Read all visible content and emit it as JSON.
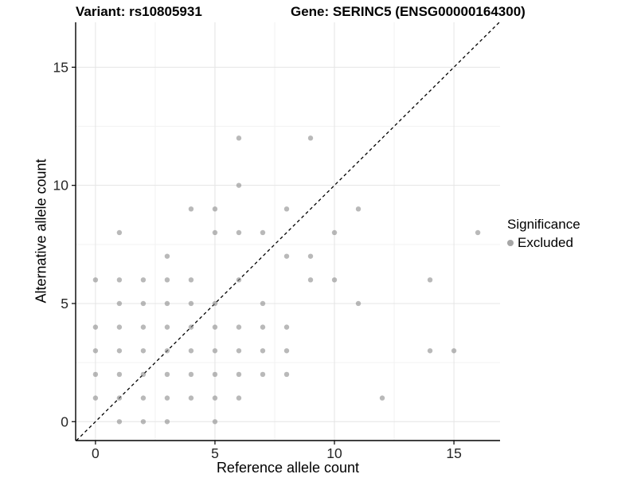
{
  "chart_data": {
    "type": "scatter",
    "title_left": "Variant: rs10805931",
    "title_right": "Gene: SERINC5 (ENSG00000164300)",
    "xlabel": "Reference allele count",
    "ylabel": "Alternative allele count",
    "xlim": [
      -0.83,
      16.93
    ],
    "ylim": [
      -0.8,
      16.9
    ],
    "x_ticks": [
      0,
      5,
      10,
      15
    ],
    "y_ticks": [
      0,
      5,
      10,
      15
    ],
    "x_minor_ticks": [
      2.5,
      7.5,
      12.5
    ],
    "y_minor_ticks": [
      2.5,
      7.5,
      12.5
    ],
    "grid": true,
    "legend": {
      "position": "right",
      "title": "Significance",
      "items": [
        {
          "label": "Excluded",
          "color": "#a6a6a6"
        }
      ]
    },
    "reference_line": {
      "type": "identity-diagonal",
      "style": "dashed",
      "color": "#000000",
      "from": [
        -0.8,
        -0.8
      ],
      "to": [
        16.9,
        16.9
      ]
    },
    "point_style": {
      "color": "#8a8a8a",
      "opacity": 0.6,
      "radius": 3.2
    },
    "colors": {
      "background": "#ffffff",
      "grid_major": "#e4e4e4",
      "grid_minor": "#f2f2f2",
      "axis_line": "#000000",
      "tick_label": "#262626"
    },
    "points": [
      [
        1,
        0
      ],
      [
        2,
        0
      ],
      [
        3,
        0
      ],
      [
        5,
        0
      ],
      [
        0,
        1
      ],
      [
        1,
        1
      ],
      [
        2,
        1
      ],
      [
        3,
        1
      ],
      [
        4,
        1
      ],
      [
        5,
        1
      ],
      [
        6,
        1
      ],
      [
        12,
        1
      ],
      [
        0,
        2
      ],
      [
        1,
        2
      ],
      [
        2,
        2
      ],
      [
        3,
        2
      ],
      [
        4,
        2
      ],
      [
        5,
        2
      ],
      [
        6,
        2
      ],
      [
        7,
        2
      ],
      [
        8,
        2
      ],
      [
        0,
        3
      ],
      [
        1,
        3
      ],
      [
        2,
        3
      ],
      [
        3,
        3
      ],
      [
        4,
        3
      ],
      [
        5,
        3
      ],
      [
        6,
        3
      ],
      [
        7,
        3
      ],
      [
        8,
        3
      ],
      [
        14,
        3
      ],
      [
        15,
        3
      ],
      [
        0,
        4
      ],
      [
        1,
        4
      ],
      [
        2,
        4
      ],
      [
        3,
        4
      ],
      [
        4,
        4
      ],
      [
        5,
        4
      ],
      [
        6,
        4
      ],
      [
        7,
        4
      ],
      [
        8,
        4
      ],
      [
        1,
        5
      ],
      [
        2,
        5
      ],
      [
        3,
        5
      ],
      [
        4,
        5
      ],
      [
        5,
        5
      ],
      [
        7,
        5
      ],
      [
        11,
        5
      ],
      [
        0,
        6
      ],
      [
        1,
        6
      ],
      [
        2,
        6
      ],
      [
        3,
        6
      ],
      [
        4,
        6
      ],
      [
        6,
        6
      ],
      [
        9,
        6
      ],
      [
        10,
        6
      ],
      [
        14,
        6
      ],
      [
        3,
        7
      ],
      [
        8,
        7
      ],
      [
        9,
        7
      ],
      [
        1,
        8
      ],
      [
        5,
        8
      ],
      [
        6,
        8
      ],
      [
        7,
        8
      ],
      [
        10,
        8
      ],
      [
        16,
        8
      ],
      [
        4,
        9
      ],
      [
        5,
        9
      ],
      [
        8,
        9
      ],
      [
        11,
        9
      ],
      [
        6,
        10
      ],
      [
        6,
        12
      ],
      [
        9,
        12
      ]
    ]
  }
}
